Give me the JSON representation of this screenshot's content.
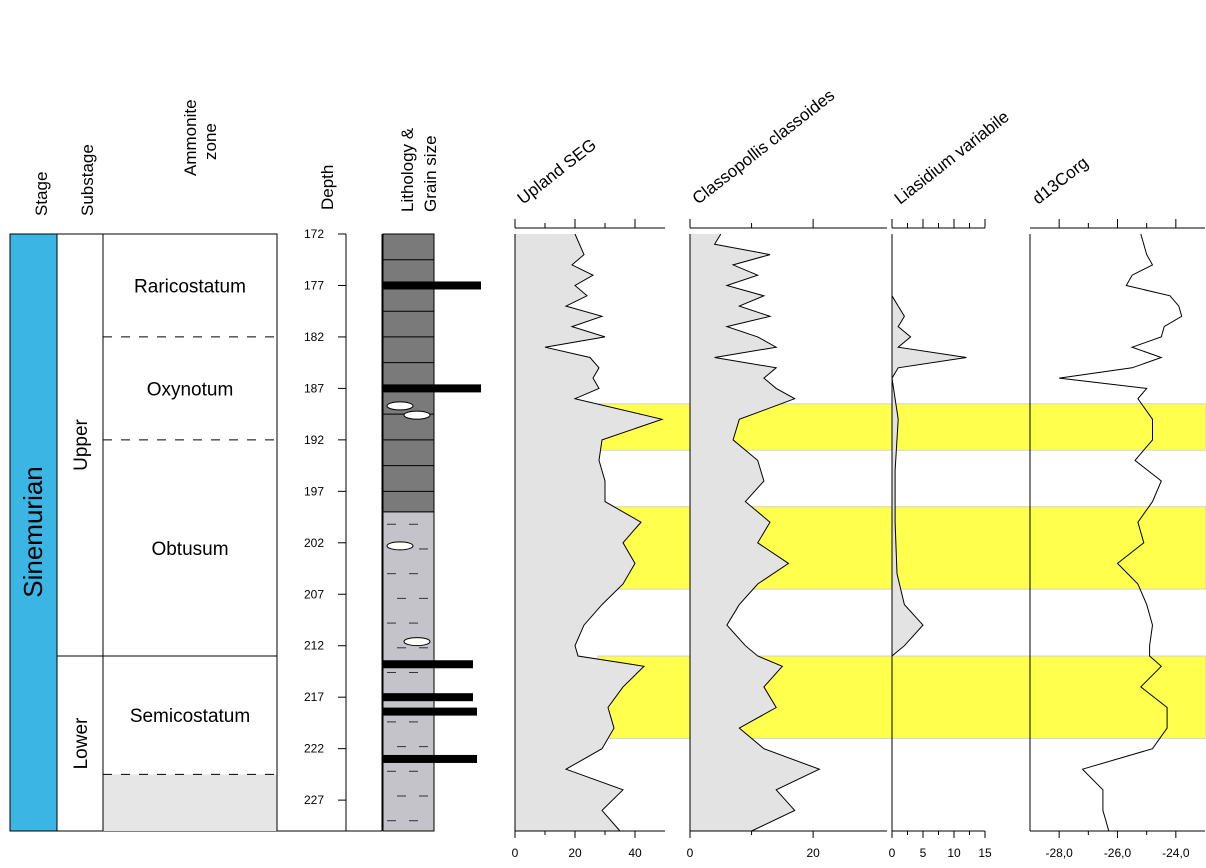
{
  "column_headers": {
    "stage": "Stage",
    "substage": "Substage",
    "ammonite_zone": [
      "Ammonite",
      "zone"
    ],
    "depth": "Depth",
    "lithology": [
      "Lithology &",
      "Grain size"
    ]
  },
  "stage": {
    "name": "Sinemurian",
    "color": "#3BB5E4"
  },
  "substages": [
    {
      "name": "Upper",
      "from": 172,
      "to": 213
    },
    {
      "name": "Lower",
      "from": 213,
      "to": 230
    }
  ],
  "ammonite_zones": [
    {
      "name": "Raricostatum",
      "from": 172,
      "to": 182
    },
    {
      "name": "Oxynotum",
      "from": 182,
      "to": 192
    },
    {
      "name": "Obtusum",
      "from": 192,
      "to": 213
    },
    {
      "name": "Semicostatum",
      "from": 213,
      "to": 224.5
    },
    {
      "name": "",
      "from": 224.5,
      "to": 230
    }
  ],
  "depth_ticks": [
    "172",
    "177",
    "182",
    "187",
    "192",
    "197",
    "202",
    "207",
    "212",
    "217",
    "222",
    "227"
  ],
  "lithology": {
    "dark_intervals": [
      [
        172,
        199
      ]
    ],
    "light_intervals": [
      [
        199,
        230
      ]
    ],
    "dark_color": "#7a7a7a",
    "light_color": "#c3c3c9",
    "bars": [
      {
        "depth": 177,
        "length": 0.98
      },
      {
        "depth": 187,
        "length": 0.98
      },
      {
        "depth": 213.8,
        "length": 0.9
      },
      {
        "depth": 217,
        "length": 0.9
      },
      {
        "depth": 218.4,
        "length": 0.94
      },
      {
        "depth": 223,
        "length": 0.94
      }
    ],
    "nodules": [
      188.7,
      189.6,
      202.3,
      211.6
    ]
  },
  "highlight_color": "#FFFF4D",
  "chart_data": {
    "type": "line",
    "y_axis": {
      "label": "Depth",
      "range": [
        172,
        230
      ],
      "inverted": true
    },
    "highlight_bands": [
      [
        188.5,
        193
      ],
      [
        198.5,
        206.5
      ],
      [
        213,
        221
      ]
    ],
    "panels": [
      {
        "title": "Upland SEG",
        "xlim": [
          0,
          50
        ],
        "x_ticks": [
          "0",
          "20",
          "40"
        ],
        "filled": true,
        "series": [
          {
            "depth": [
              172,
              174,
              175,
              176,
              177,
              178,
              179,
              180,
              181,
              182,
              183,
              184,
              185,
              186,
              187,
              188,
              190,
              192,
              194,
              196,
              198,
              200,
              202,
              204,
              206,
              208,
              210,
              212,
              213,
              214,
              216,
              218,
              220,
              222,
              224,
              226,
              228,
              230
            ],
            "value": [
              20,
              23,
              19,
              26,
              20,
              24,
              17,
              29,
              19,
              30,
              10,
              25,
              28,
              26,
              28,
              20,
              49,
              29,
              28,
              30,
              30,
              42,
              36,
              40,
              36,
              29,
              23,
              20,
              21,
              43,
              36,
              31,
              33,
              29,
              17,
              36,
              29,
              35
            ]
          }
        ]
      },
      {
        "title": "Classopollis classoides",
        "xlim": [
          0,
          32
        ],
        "x_ticks": [
          "0",
          "20"
        ],
        "filled": true,
        "series": [
          {
            "depth": [
              172,
              173,
              174,
              175,
              176,
              177,
              178,
              179,
              180,
              181,
              182,
              183,
              184,
              185,
              186,
              187,
              188,
              190,
              192,
              194,
              196,
              198,
              200,
              202,
              204,
              206,
              208,
              210,
              212,
              213,
              214,
              216,
              218,
              220,
              222,
              224,
              226,
              228,
              230
            ],
            "value": [
              5,
              4,
              13,
              7,
              11,
              6,
              12,
              8,
              13,
              6,
              11,
              14,
              4,
              14,
              12,
              14,
              17,
              8,
              7,
              11,
              12,
              9,
              13,
              11,
              16,
              11,
              8,
              6,
              9,
              11,
              15,
              12,
              14,
              8,
              12,
              21,
              14,
              17,
              10
            ]
          }
        ]
      },
      {
        "title": "Liasidium variabile",
        "xlim": [
          0,
          15
        ],
        "x_ticks": [
          "0",
          "5",
          "10",
          "15"
        ],
        "filled": true,
        "series": [
          {
            "depth": [
              172,
              178,
              179,
              180,
              181,
              182,
              183,
              184,
              185,
              186,
              190,
              195,
              200,
              205,
              208,
              210,
              212,
              213,
              230
            ],
            "value": [
              0,
              0,
              1,
              2,
              1,
              3,
              1,
              12,
              1,
              0,
              1,
              0.5,
              0.5,
              0.8,
              2,
              5,
              2,
              0,
              0
            ]
          }
        ]
      },
      {
        "title": "d13Corg",
        "xlim": [
          -29,
          -23
        ],
        "x_ticks": [
          "-28,0",
          "-26,0",
          "-24,0"
        ],
        "filled": false,
        "series": [
          {
            "depth": [
              172,
              174,
              175,
              176,
              177,
              178,
              179,
              180,
              181,
              182,
              183,
              184,
              185,
              186,
              187,
              188,
              190,
              192,
              194,
              196,
              198,
              200,
              202,
              204,
              206,
              208,
              210,
              212,
              213,
              214,
              216,
              218,
              220,
              222,
              224,
              226,
              228,
              230
            ],
            "value": [
              -25.2,
              -25.0,
              -24.8,
              -25.5,
              -25.7,
              -24.2,
              -23.9,
              -23.8,
              -24.4,
              -24.5,
              -25.5,
              -24.5,
              -25.5,
              -28.0,
              -25.0,
              -25.3,
              -24.8,
              -24.8,
              -25.4,
              -24.5,
              -24.8,
              -25.3,
              -25.1,
              -26.0,
              -25.3,
              -25.0,
              -24.8,
              -24.9,
              -24.9,
              -24.5,
              -25.2,
              -24.3,
              -24.3,
              -24.8,
              -27.2,
              -26.5,
              -26.5,
              -26.3
            ]
          }
        ]
      }
    ]
  }
}
